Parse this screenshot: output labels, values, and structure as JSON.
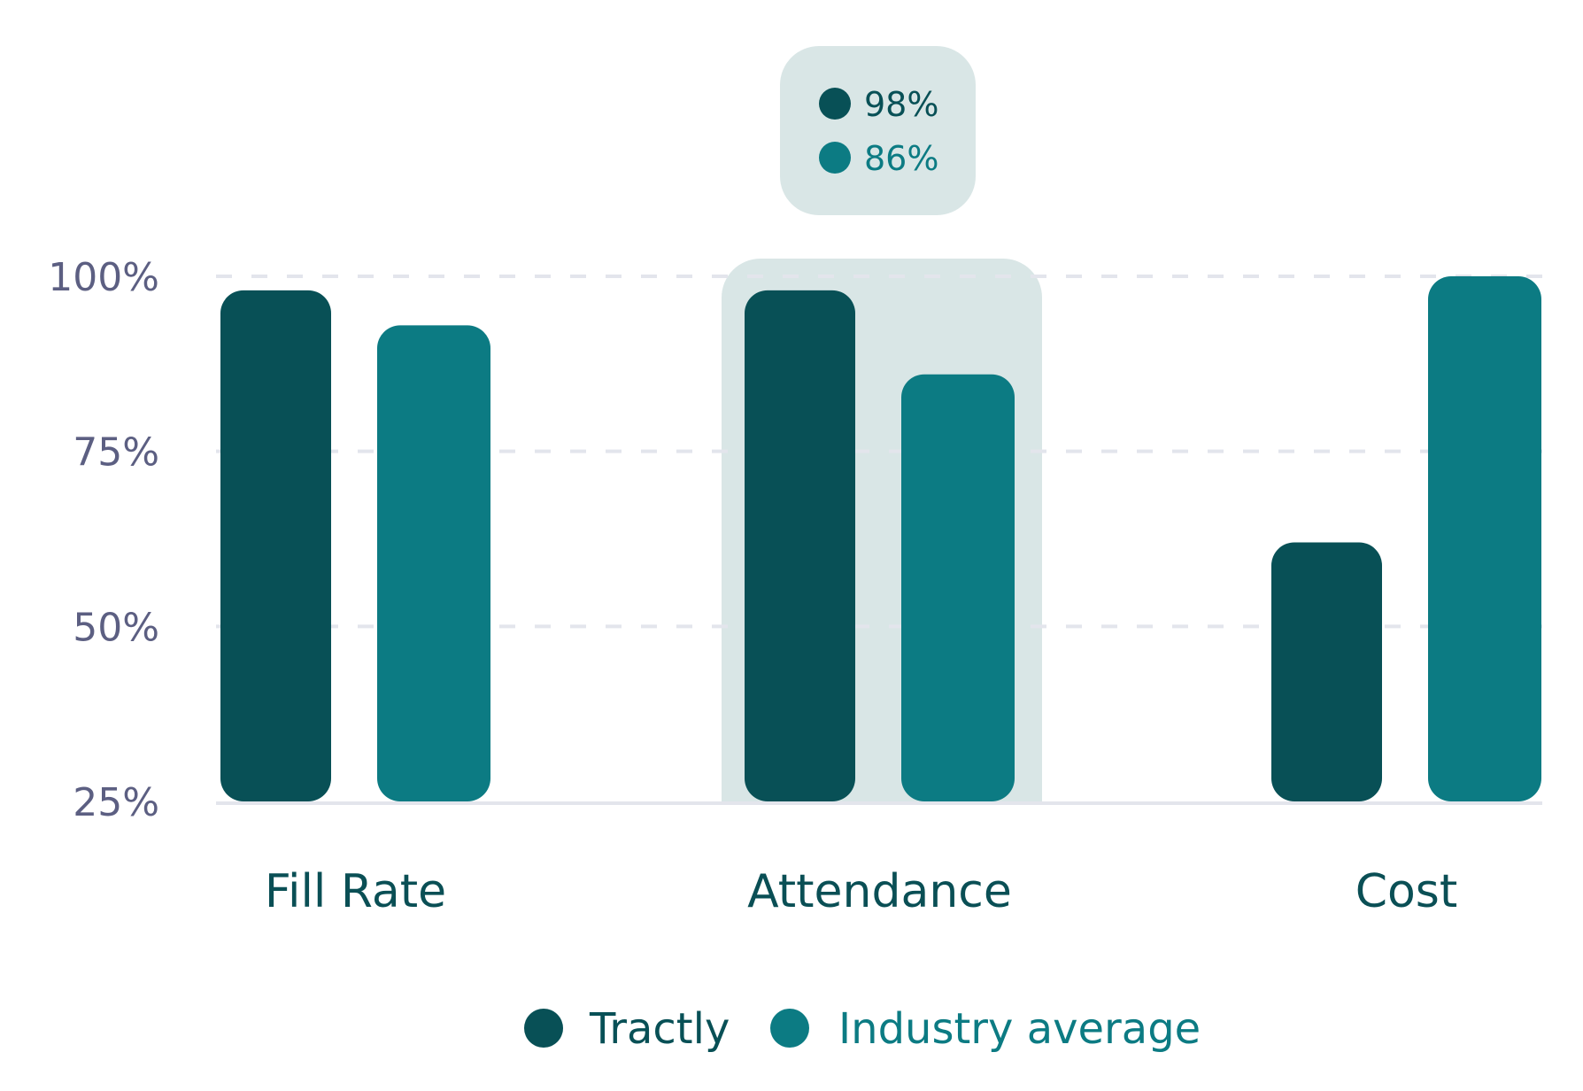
{
  "chart_data": {
    "type": "bar",
    "categories": [
      "Fill Rate",
      "Attendance",
      "Cost"
    ],
    "series": [
      {
        "name": "Tractly",
        "values": [
          98,
          98,
          62
        ],
        "color": "#085056"
      },
      {
        "name": "Industry average",
        "values": [
          93,
          86,
          100
        ],
        "color": "#0c7b83"
      }
    ],
    "yticks": [
      "25%",
      "50%",
      "75%",
      "100%"
    ],
    "ytick_values": [
      25,
      50,
      75,
      100
    ],
    "ylim": [
      25,
      100
    ],
    "grid": true,
    "legend": "bottom-center",
    "highlighted_category": "Attendance",
    "tooltip": {
      "values": [
        "98%",
        "86%"
      ]
    },
    "highlight_color": "#d9e6e6",
    "grid_color": "#e3e5ec"
  }
}
